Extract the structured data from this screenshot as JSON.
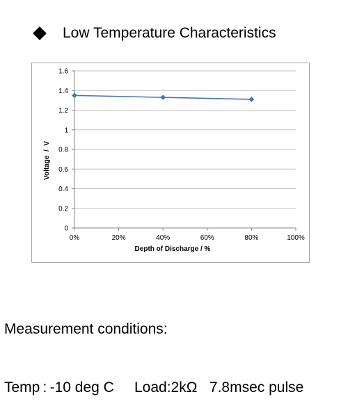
{
  "heading": {
    "bullet_icon": "diamond-bullet-icon",
    "title": "Low Temperature Characteristics"
  },
  "chart_data": {
    "type": "line",
    "xlabel": "Depth of Discharge / %",
    "ylabel": "Voltage  /  V",
    "x_ticks": [
      "0%",
      "20%",
      "40%",
      "60%",
      "80%",
      "100%"
    ],
    "y_ticks": [
      "0",
      "0.2",
      "0.4",
      "0.6",
      "0.8",
      "1",
      "1.2",
      "1.4",
      "1.6"
    ],
    "xlim": [
      0,
      100
    ],
    "ylim": [
      0,
      1.6
    ],
    "grid": "horizontal",
    "series": [
      {
        "x": [
          0,
          40,
          80
        ],
        "y": [
          1.35,
          1.33,
          1.31
        ],
        "color": "#4472c4",
        "marker": "diamond"
      }
    ]
  },
  "notes": {
    "line1": "Measurement conditions:",
    "line2": "Temp : -10 deg C     Load:2kΩ   7.8msec pulse"
  }
}
